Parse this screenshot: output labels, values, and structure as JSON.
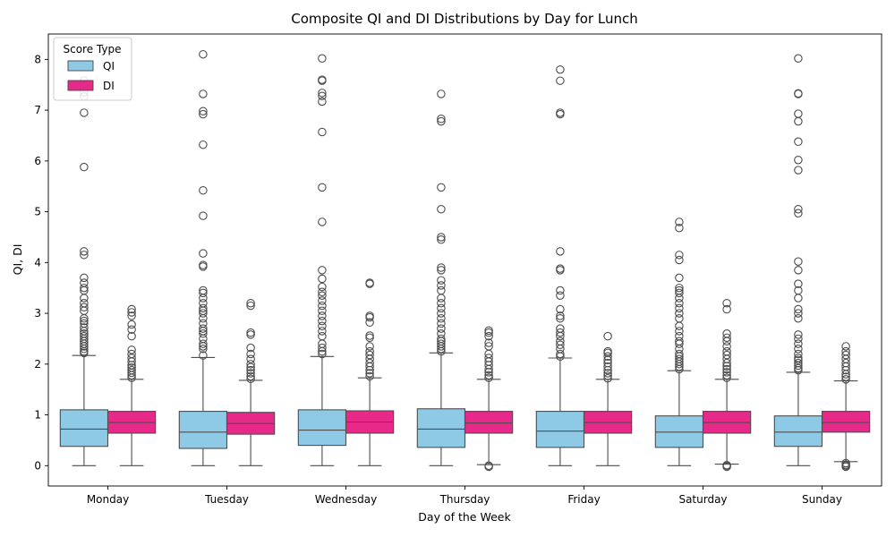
{
  "chart_data": {
    "type": "box",
    "title": "Composite QI and DI Distributions by Day for Lunch",
    "xlabel": "Day of the Week",
    "ylabel": "QI, DI",
    "ylim": [
      -0.4,
      8.5
    ],
    "yticks": [
      0,
      1,
      2,
      3,
      4,
      5,
      6,
      7,
      8
    ],
    "grid": false,
    "legend": {
      "title": "Score Type",
      "position": "top-left"
    },
    "categories": [
      "Monday",
      "Tuesday",
      "Wednesday",
      "Thursday",
      "Friday",
      "Saturday",
      "Sunday"
    ],
    "series": [
      {
        "name": "QI",
        "color": "#8ecae6",
        "boxes": [
          {
            "whislo": 0,
            "q1": 0.38,
            "med": 0.72,
            "q3": 1.1,
            "whishi": 2.17,
            "fliers": [
              2.22,
              2.25,
              2.3,
              2.35,
              2.4,
              2.45,
              2.5,
              2.55,
              2.6,
              2.65,
              2.72,
              2.8,
              2.85,
              2.9,
              3.05,
              3.12,
              3.2,
              3.3,
              3.45,
              3.5,
              3.6,
              3.7,
              4.15,
              4.22,
              5.88,
              6.95,
              7.27,
              7.35,
              7.58
            ]
          },
          {
            "whislo": 0,
            "q1": 0.34,
            "med": 0.66,
            "q3": 1.07,
            "whishi": 2.13,
            "fliers": [
              2.17,
              2.3,
              2.35,
              2.4,
              2.5,
              2.6,
              2.65,
              2.7,
              2.8,
              2.9,
              3.0,
              3.05,
              3.1,
              3.2,
              3.3,
              3.4,
              3.45,
              3.92,
              3.95,
              4.18,
              4.92,
              5.42,
              6.32,
              6.92,
              6.98,
              7.32,
              8.1
            ]
          },
          {
            "whislo": 0,
            "q1": 0.4,
            "med": 0.7,
            "q3": 1.1,
            "whishi": 2.15,
            "fliers": [
              2.2,
              2.25,
              2.32,
              2.4,
              2.55,
              2.65,
              2.75,
              2.85,
              2.95,
              3.05,
              3.15,
              3.25,
              3.35,
              3.42,
              3.52,
              3.68,
              3.85,
              4.8,
              5.48,
              6.57,
              7.17,
              7.28,
              7.34,
              7.58,
              7.6,
              8.02
            ]
          },
          {
            "whislo": 0,
            "q1": 0.36,
            "med": 0.72,
            "q3": 1.12,
            "whishi": 2.22,
            "fliers": [
              2.25,
              2.3,
              2.35,
              2.4,
              2.45,
              2.5,
              2.6,
              2.7,
              2.8,
              2.9,
              3.0,
              3.1,
              3.2,
              3.3,
              3.45,
              3.55,
              3.65,
              3.85,
              3.9,
              4.45,
              4.5,
              5.05,
              5.48,
              6.78,
              6.83,
              7.32
            ]
          },
          {
            "whislo": 0,
            "q1": 0.36,
            "med": 0.68,
            "q3": 1.07,
            "whishi": 2.12,
            "fliers": [
              2.15,
              2.2,
              2.3,
              2.38,
              2.45,
              2.55,
              2.62,
              2.7,
              2.9,
              2.95,
              3.08,
              3.35,
              3.45,
              3.85,
              3.88,
              4.22,
              6.92,
              6.95,
              7.58,
              7.8
            ]
          },
          {
            "whislo": 0,
            "q1": 0.36,
            "med": 0.66,
            "q3": 0.98,
            "whishi": 1.87,
            "fliers": [
              1.9,
              1.95,
              2.0,
              2.05,
              2.1,
              2.15,
              2.2,
              2.3,
              2.4,
              2.45,
              2.55,
              2.65,
              2.75,
              2.9,
              3.0,
              3.1,
              3.2,
              3.3,
              3.4,
              3.45,
              3.5,
              3.7,
              4.05,
              4.15,
              4.68,
              4.8
            ]
          },
          {
            "whislo": 0,
            "q1": 0.38,
            "med": 0.66,
            "q3": 0.98,
            "whishi": 1.84,
            "fliers": [
              1.88,
              1.92,
              1.97,
              2.02,
              2.08,
              2.12,
              2.2,
              2.3,
              2.4,
              2.5,
              2.58,
              2.9,
              3.0,
              3.08,
              3.3,
              3.45,
              3.58,
              3.85,
              4.02,
              4.97,
              5.05,
              5.82,
              6.02,
              6.38,
              6.78,
              6.93,
              7.32,
              7.33,
              8.02
            ]
          }
        ]
      },
      {
        "name": "DI",
        "color": "#e7298a",
        "boxes": [
          {
            "whislo": 0,
            "q1": 0.64,
            "med": 0.85,
            "q3": 1.07,
            "whishi": 1.7,
            "fliers": [
              1.73,
              1.78,
              1.83,
              1.88,
              1.93,
              1.98,
              2.05,
              2.12,
              2.2,
              2.28,
              2.55,
              2.68,
              2.78,
              2.95,
              3.02,
              3.08
            ]
          },
          {
            "whislo": 0,
            "q1": 0.62,
            "med": 0.83,
            "q3": 1.05,
            "whishi": 1.68,
            "fliers": [
              1.71,
              1.76,
              1.82,
              1.88,
              1.94,
              2.0,
              2.1,
              2.2,
              2.32,
              2.58,
              2.62,
              3.15,
              3.2
            ]
          },
          {
            "whislo": 0,
            "q1": 0.64,
            "med": 0.86,
            "q3": 1.08,
            "whishi": 1.73,
            "fliers": [
              1.76,
              1.82,
              1.88,
              1.95,
              2.02,
              2.1,
              2.18,
              2.25,
              2.35,
              2.52,
              2.56,
              2.82,
              2.92,
              2.95,
              3.58,
              3.6
            ]
          },
          {
            "whislo": 0.02,
            "q1": 0.64,
            "med": 0.84,
            "q3": 1.07,
            "whishi": 1.7,
            "fliers": [
              -0.02,
              0.0,
              1.73,
              1.78,
              1.84,
              1.9,
              1.98,
              2.05,
              2.12,
              2.2,
              2.35,
              2.42,
              2.55,
              2.62,
              2.66
            ]
          },
          {
            "whislo": 0,
            "q1": 0.64,
            "med": 0.85,
            "q3": 1.07,
            "whishi": 1.7,
            "fliers": [
              1.72,
              1.77,
              1.82,
              1.88,
              1.95,
              2.02,
              2.08,
              2.15,
              2.22,
              2.25,
              2.55
            ]
          },
          {
            "whislo": 0.03,
            "q1": 0.64,
            "med": 0.85,
            "q3": 1.07,
            "whishi": 1.7,
            "fliers": [
              -0.02,
              0.0,
              0.01,
              1.73,
              1.78,
              1.84,
              1.9,
              1.96,
              2.02,
              2.1,
              2.18,
              2.25,
              2.35,
              2.45,
              2.52,
              2.6,
              3.08,
              3.2
            ]
          },
          {
            "whislo": 0.08,
            "q1": 0.66,
            "med": 0.85,
            "q3": 1.07,
            "whishi": 1.67,
            "fliers": [
              -0.02,
              0.0,
              0.02,
              0.05,
              1.7,
              1.75,
              1.8,
              1.88,
              1.95,
              2.02,
              2.1,
              2.18,
              2.25,
              2.35
            ]
          }
        ]
      }
    ]
  }
}
